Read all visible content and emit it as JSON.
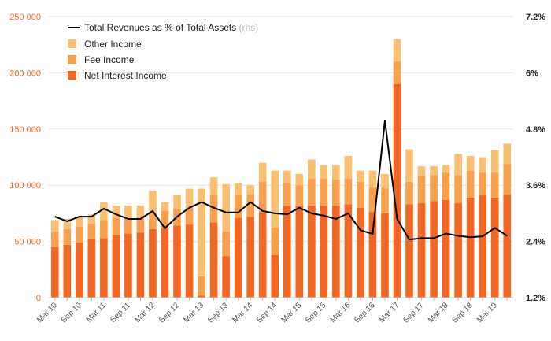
{
  "chart_data": {
    "type": "bar",
    "stacked": true,
    "title": "",
    "xlabel": "",
    "ylabel": "",
    "colors": {
      "net_interest": "#f26722",
      "fee": "#f9a04e",
      "other": "#fbbf72",
      "line": "#000000",
      "grid": "#e4e4e4",
      "left_axis_text": "#f26722"
    },
    "ylim": [
      0,
      250000
    ],
    "y2lim": [
      1.2,
      7.2
    ],
    "y_ticks": [
      "0",
      "50 000",
      "100 000",
      "150 000",
      "200 000",
      "250 000"
    ],
    "y2_ticks": [
      "1.2%",
      "2.4%",
      "3.6%",
      "4.8%",
      "6%",
      "7.2%"
    ],
    "x_tick_labels": [
      "Mar 10",
      "Sep 10",
      "Mar 11",
      "Sep 11",
      "Mar 12",
      "Sep 12",
      "Mar 13",
      "Sep 13",
      "Mar 14",
      "Sep 14",
      "Mar 15",
      "Sep 15",
      "Mar 16",
      "Sep 16",
      "Mar 17",
      "Sep 17",
      "Mar 18",
      "Sep 18",
      "Mar 19"
    ],
    "categories": [
      "Mar 10",
      "Jun 10",
      "Sep 10",
      "Dec 10",
      "Mar 11",
      "Jun 11",
      "Sep 11",
      "Dec 11",
      "Mar 12",
      "Jun 12",
      "Sep 12",
      "Dec 12",
      "Mar 13",
      "Jun 13",
      "Sep 13",
      "Dec 13",
      "Mar 14",
      "Jun 14",
      "Sep 14",
      "Dec 14",
      "Mar 15",
      "Jun 15",
      "Sep 15",
      "Dec 15",
      "Mar 16",
      "Jun 16",
      "Sep 16",
      "Dec 16",
      "Mar 17",
      "Jun 17",
      "Sep 17",
      "Dec 17",
      "Mar 18",
      "Jun 18",
      "Sep 18",
      "Dec 18",
      "Mar 19",
      "Jun 19"
    ],
    "legend": {
      "line_label": "Total Revenues as % of Total Assets",
      "line_note": " (rhs)",
      "position": "top-left"
    },
    "series": [
      {
        "name": "Net Interest Income",
        "values": [
          45000,
          47000,
          49000,
          52000,
          53000,
          56000,
          57000,
          58000,
          61000,
          62000,
          64000,
          65000,
          2000,
          67000,
          37000,
          71000,
          72000,
          75000,
          38000,
          82000,
          82000,
          82000,
          82000,
          82000,
          83000,
          80000,
          76000,
          75000,
          190000,
          83000,
          84000,
          86000,
          87000,
          84000,
          89000,
          91000,
          89000,
          92000
        ]
      },
      {
        "name": "Fee Income",
        "values": [
          14000,
          14000,
          14000,
          14000,
          16000,
          15000,
          14000,
          14000,
          15000,
          15000,
          15000,
          15000,
          17000,
          24000,
          22000,
          20000,
          20000,
          28000,
          24000,
          20000,
          18000,
          24000,
          24000,
          23000,
          23000,
          23000,
          22000,
          22000,
          20000,
          20000,
          24000,
          23000,
          24000,
          25000,
          24000,
          20000,
          22000,
          27000
        ]
      },
      {
        "name": "Other Income",
        "values": [
          10000,
          9000,
          9000,
          8000,
          16000,
          11000,
          11000,
          10000,
          19000,
          8000,
          12000,
          17000,
          78000,
          16000,
          42000,
          11000,
          8000,
          17000,
          51000,
          11000,
          10000,
          17000,
          12000,
          13000,
          20000,
          10000,
          15000,
          13000,
          20000,
          29000,
          9000,
          8000,
          7000,
          19000,
          13000,
          14000,
          20000,
          18000
        ]
      },
      {
        "name": "Total Revenues as % of Total Assets",
        "axis": "right",
        "values": [
          2.93,
          2.83,
          2.93,
          2.93,
          3.1,
          2.98,
          2.88,
          2.88,
          3.05,
          2.68,
          2.93,
          3.12,
          3.24,
          3.12,
          3.02,
          3.02,
          3.24,
          3.05,
          3.0,
          2.98,
          3.12,
          3.0,
          2.95,
          2.88,
          3.0,
          2.64,
          2.56,
          4.98,
          2.88,
          2.44,
          2.47,
          2.47,
          2.57,
          2.52,
          2.49,
          2.51,
          2.69,
          2.52
        ]
      }
    ]
  }
}
